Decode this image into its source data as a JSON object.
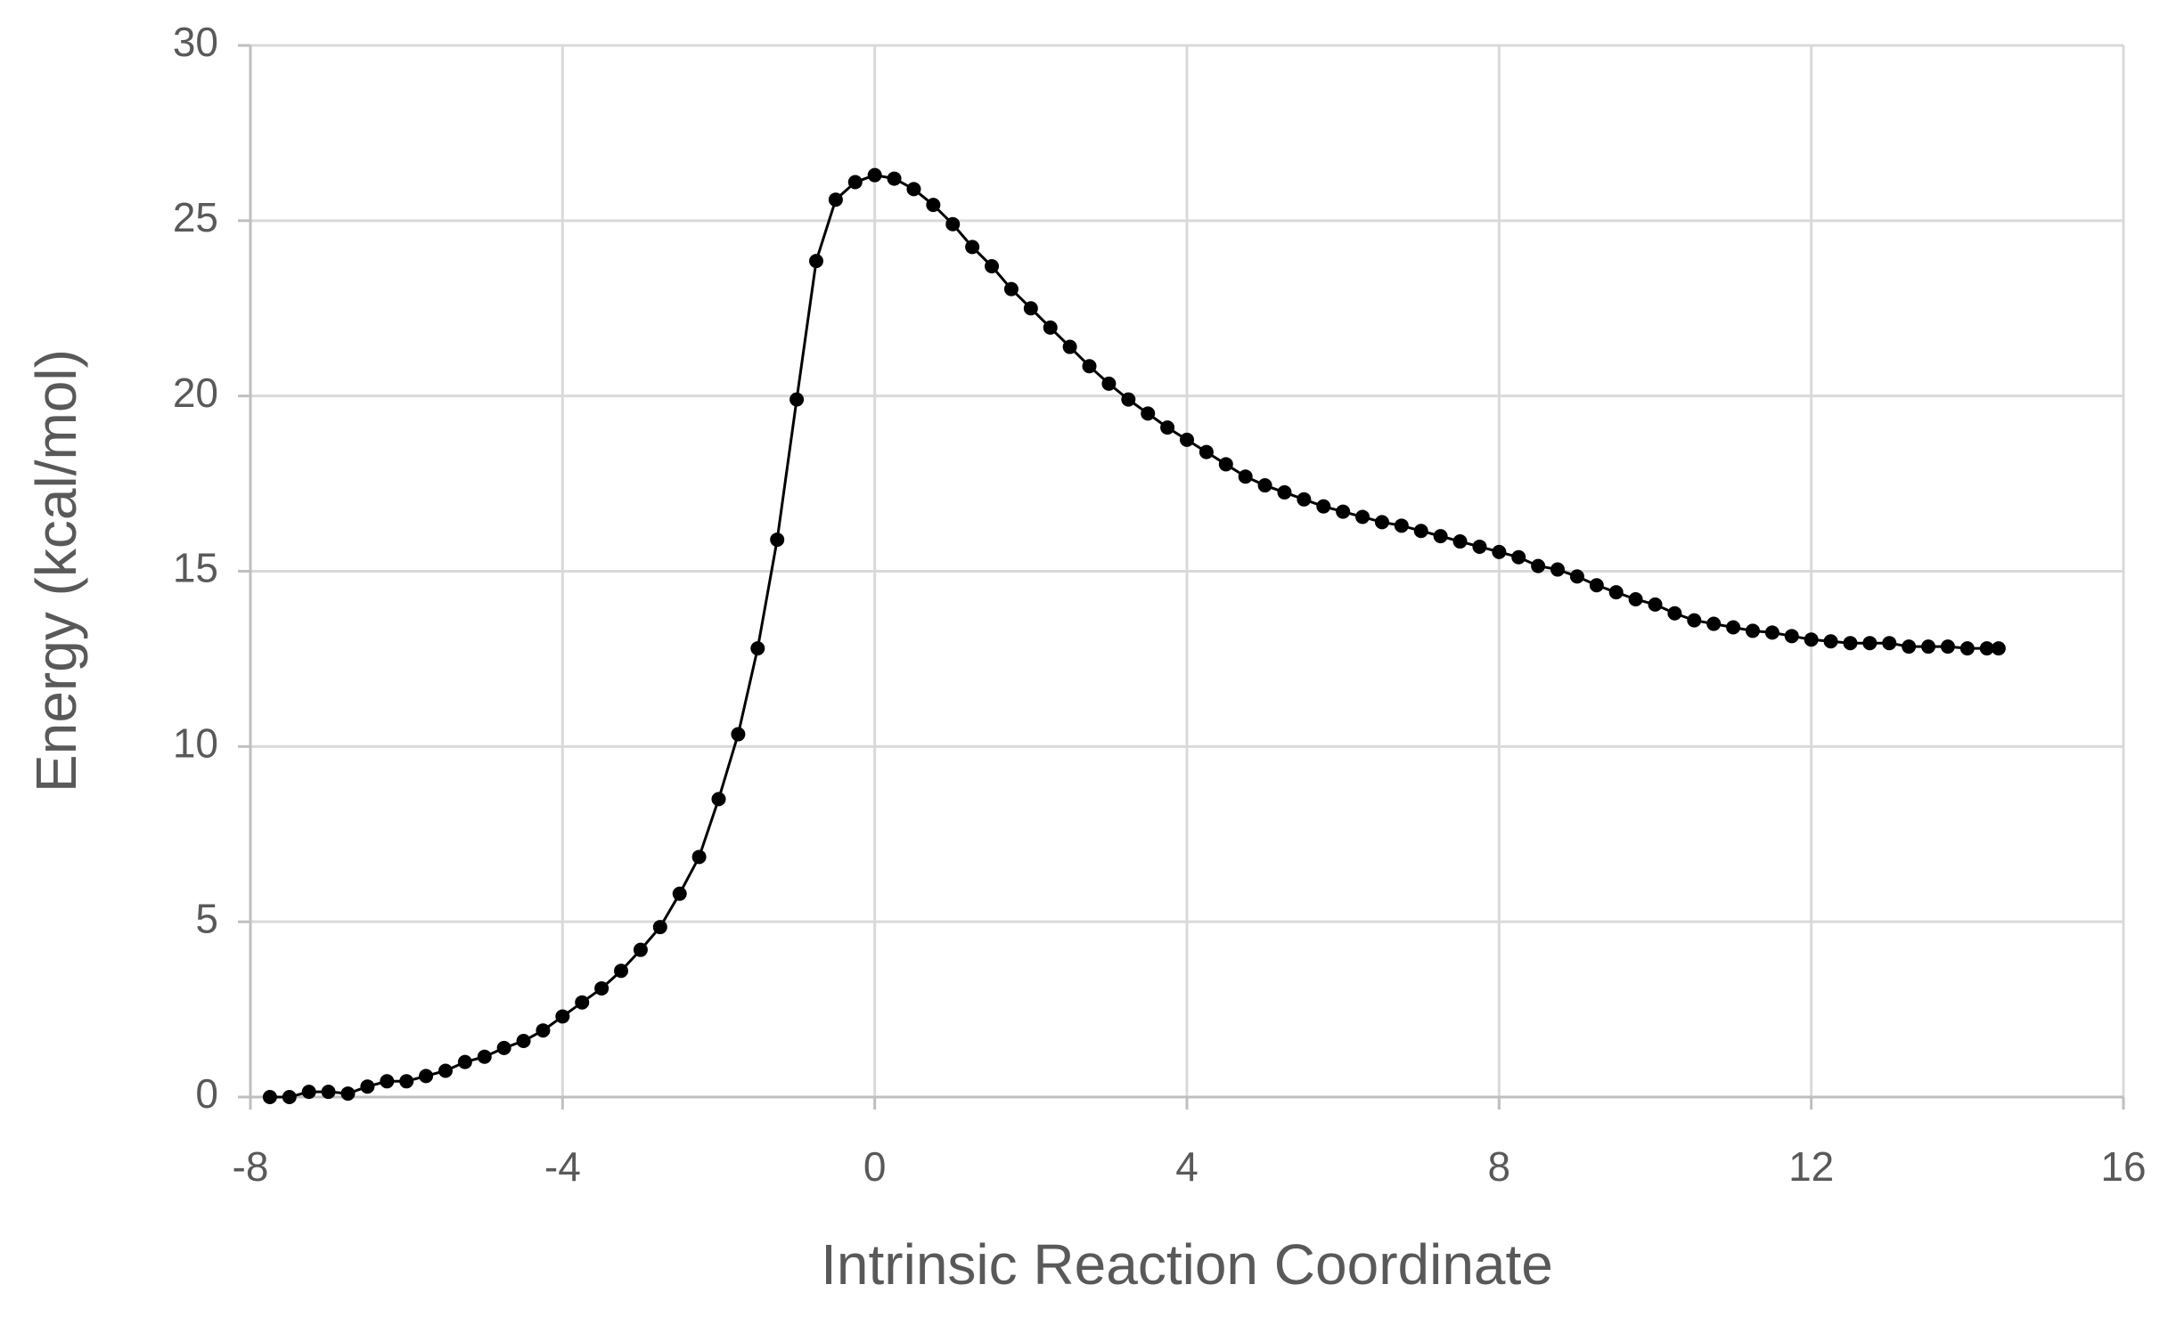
{
  "chart_data": {
    "type": "line",
    "x_label": "Intrinsic Reaction Coordinate",
    "y_label": "Energy (kcal/mol)",
    "xlim": [
      -8,
      16
    ],
    "xticks": [
      -8,
      -4,
      0,
      4,
      8,
      12,
      16
    ],
    "ylim": [
      0,
      30
    ],
    "yticks": [
      0,
      5,
      10,
      15,
      20,
      25,
      30
    ],
    "grid": true,
    "series": [
      {
        "color": "#000000",
        "x": [
          -7.75,
          -7.5,
          -7.25,
          -7.0,
          -6.75,
          -6.5,
          -6.25,
          -6.0,
          -5.75,
          -5.5,
          -5.25,
          -5.0,
          -4.75,
          -4.5,
          -4.25,
          -4.0,
          -3.75,
          -3.5,
          -3.25,
          -3.0,
          -2.75,
          -2.5,
          -2.25,
          -2.0,
          -1.75,
          -1.5,
          -1.25,
          -1.0,
          -0.75,
          -0.5,
          -0.25,
          0,
          0.25,
          0.5,
          0.75,
          1.0,
          1.25,
          1.5,
          1.75,
          2.0,
          2.25,
          2.5,
          2.75,
          3.0,
          3.25,
          3.5,
          3.75,
          4.0,
          4.25,
          4.5,
          4.75,
          5.0,
          5.25,
          5.5,
          5.75,
          6.0,
          6.25,
          6.5,
          6.75,
          7.0,
          7.25,
          7.5,
          7.75,
          8.0,
          8.25,
          8.5,
          8.75,
          9.0,
          9.25,
          9.5,
          9.75,
          10.0,
          10.25,
          10.5,
          10.75,
          11.0,
          11.25,
          11.5,
          11.75,
          12.0,
          12.25,
          12.5,
          12.75,
          13.0,
          13.25,
          13.5,
          13.75,
          14.0,
          14.25,
          14.4
        ],
        "values": [
          0.0,
          0.0,
          0.15,
          0.15,
          0.1,
          0.3,
          0.45,
          0.45,
          0.6,
          0.75,
          1.0,
          1.15,
          1.4,
          1.6,
          1.9,
          2.3,
          2.7,
          3.1,
          3.6,
          4.2,
          4.85,
          5.8,
          6.85,
          8.5,
          10.35,
          12.8,
          15.9,
          19.9,
          23.85,
          25.6,
          26.1,
          26.3,
          26.2,
          25.9,
          25.45,
          24.9,
          24.25,
          23.7,
          23.05,
          22.5,
          21.95,
          21.4,
          20.85,
          20.35,
          19.9,
          19.5,
          19.1,
          18.75,
          18.4,
          18.05,
          17.7,
          17.45,
          17.25,
          17.05,
          16.85,
          16.7,
          16.55,
          16.4,
          16.3,
          16.15,
          16.0,
          15.85,
          15.7,
          15.55,
          15.4,
          15.15,
          15.05,
          14.85,
          14.6,
          14.4,
          14.2,
          14.05,
          13.8,
          13.6,
          13.5,
          13.4,
          13.3,
          13.25,
          13.15,
          13.05,
          13.0,
          12.95,
          12.95,
          12.95,
          12.85,
          12.85,
          12.85,
          12.8,
          12.8,
          12.8
        ]
      }
    ]
  }
}
